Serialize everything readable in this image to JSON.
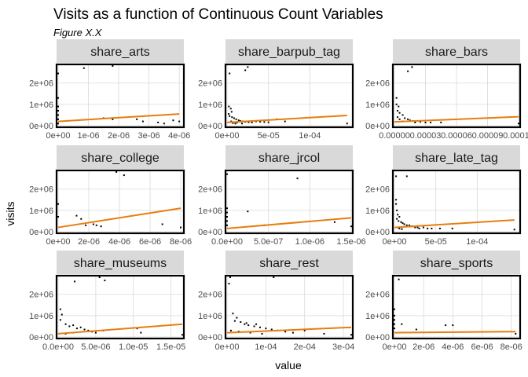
{
  "header": {
    "title": "Visits as a function of Continuous Count Variables",
    "subtitle": "Figure X.X"
  },
  "axes": {
    "xlabel": "value",
    "ylabel": "visits"
  },
  "chart_data": {
    "type": "scatter",
    "facet_layout": "3x3",
    "y_ticks": [
      "0e+00",
      "1e+06",
      "2e+06"
    ],
    "y_tick_values": [
      0,
      1000000,
      2000000
    ],
    "ylim": [
      0,
      2800000
    ],
    "grid": true,
    "fit_color": "#e87d0d",
    "point_color": "#000000",
    "panels": [
      {
        "name": "share_arts",
        "xlim": [
          0,
          4.1e-06
        ],
        "x_ticks": [
          "0e+00",
          "1e-06",
          "2e-06",
          "3e-06",
          "4e-06"
        ],
        "x_tick_values": [
          0,
          1e-06,
          2e-06,
          3e-06,
          4e-06
        ],
        "points": [
          [
            0,
            2450000
          ],
          [
            8.5e-07,
            2700000
          ],
          [
            1.8e-06,
            2800000
          ],
          [
            0,
            1300000
          ],
          [
            0,
            900000
          ],
          [
            0,
            700000
          ],
          [
            0,
            500000
          ],
          [
            0,
            300000
          ],
          [
            0,
            100000
          ],
          [
            1.5e-06,
            350000
          ],
          [
            1.8e-06,
            300000
          ],
          [
            2.6e-06,
            300000
          ],
          [
            2.8e-06,
            200000
          ],
          [
            3.3e-06,
            150000
          ],
          [
            3.5e-06,
            100000
          ],
          [
            4e-06,
            200000
          ],
          [
            3.8e-06,
            250000
          ]
        ],
        "fit": [
          [
            0,
            200000
          ],
          [
            4e-06,
            550000
          ]
        ]
      },
      {
        "name": "share_barpub_tag",
        "xlim": [
          0,
          0.00015
        ],
        "x_ticks": [
          "0e+00",
          "5e-05",
          "1e-04"
        ],
        "x_tick_values": [
          0,
          5e-05,
          0.0001
        ],
        "points": [
          [
            3e-06,
            2450000
          ],
          [
            2.2e-06,
            900000
          ],
          [
            4.5e-06,
            800000
          ],
          [
            5.5e-06,
            650000
          ],
          [
            2e-06,
            550000
          ],
          [
            3e-06,
            450000
          ],
          [
            6e-06,
            400000
          ],
          [
            8.5e-06,
            350000
          ],
          [
            1.1e-05,
            300000
          ],
          [
            1.4e-05,
            250000
          ],
          [
            1.6e-05,
            220000
          ],
          [
            1.9e-05,
            200000
          ],
          [
            2.2e-05,
            180000
          ],
          [
            2.6e-05,
            160000
          ],
          [
            3e-05,
            150000
          ],
          [
            3.5e-05,
            200000
          ],
          [
            4e-05,
            180000
          ],
          [
            4.5e-05,
            170000
          ],
          [
            5e-05,
            160000
          ],
          [
            6e-05,
            300000
          ],
          [
            7e-05,
            200000
          ],
          [
            2.2e-05,
            2600000
          ],
          [
            2.5e-05,
            2750000
          ],
          [
            1e-05,
            100000
          ],
          [
            0.000145,
            100000
          ],
          [
            5e-06,
            200000
          ],
          [
            7e-06,
            120000
          ],
          [
            1.2e-05,
            150000
          ],
          [
            1.8e-05,
            100000
          ]
        ],
        "fit": [
          [
            0,
            150000
          ],
          [
            0.000145,
            480000
          ]
        ]
      },
      {
        "name": "share_bars",
        "xlim": [
          0,
          0.00012
        ],
        "x_ticks": [
          "0.00000",
          "0.00003",
          "0.00006",
          "0.00009",
          "0.00012"
        ],
        "x_tick_values": [
          0,
          3e-05,
          6e-05,
          9e-05,
          0.00012
        ],
        "points": [
          [
            1.3e-05,
            2550000
          ],
          [
            1.7e-05,
            2750000
          ],
          [
            2e-06,
            1300000
          ],
          [
            2e-06,
            1000000
          ],
          [
            4e-06,
            900000
          ],
          [
            3e-06,
            700000
          ],
          [
            5e-06,
            600000
          ],
          [
            8e-06,
            500000
          ],
          [
            3e-06,
            400000
          ],
          [
            5e-06,
            300000
          ],
          [
            1e-05,
            350000
          ],
          [
            1.3e-05,
            300000
          ],
          [
            1.5e-05,
            250000
          ],
          [
            1.8e-05,
            220000
          ],
          [
            8e-06,
            200000
          ],
          [
            2e-05,
            150000
          ],
          [
            2.5e-05,
            180000
          ],
          [
            3e-05,
            150000
          ],
          [
            3.5e-05,
            150000
          ],
          [
            4.5e-05,
            150000
          ],
          [
            0.00012,
            100000
          ]
        ],
        "fit": [
          [
            0,
            180000
          ],
          [
            0.00012,
            420000
          ]
        ]
      },
      {
        "name": "share_college",
        "xlim": [
          0,
          8.1e-06
        ],
        "x_ticks": [
          "0e+00",
          "2e-06",
          "4e-06",
          "6e-06",
          "8e-06"
        ],
        "x_tick_values": [
          0,
          2e-06,
          4e-06,
          6e-06,
          8e-06
        ],
        "points": [
          [
            0,
            1300000
          ],
          [
            0,
            700000
          ],
          [
            1.2e-06,
            750000
          ],
          [
            1.5e-06,
            600000
          ],
          [
            1.8e-06,
            300000
          ],
          [
            2.3e-06,
            350000
          ],
          [
            2.5e-06,
            300000
          ],
          [
            2.8e-06,
            250000
          ],
          [
            3.8e-06,
            2800000
          ],
          [
            4.3e-06,
            2650000
          ],
          [
            6.8e-06,
            350000
          ],
          [
            8e-06,
            200000
          ]
        ],
        "fit": [
          [
            0,
            200000
          ],
          [
            8e-06,
            1100000
          ]
        ]
      },
      {
        "name": "share_jrcol",
        "xlim": [
          0,
          1.5e-06
        ],
        "x_ticks": [
          "0.0e+00",
          "5.0e-07",
          "1.0e-06",
          "1.5e-06"
        ],
        "x_tick_values": [
          0,
          5e-07,
          1e-06,
          1.5e-06
        ],
        "points": [
          [
            0,
            2700000
          ],
          [
            0,
            1100000
          ],
          [
            0,
            900000
          ],
          [
            0,
            700000
          ],
          [
            0,
            500000
          ],
          [
            0,
            300000
          ],
          [
            2.5e-07,
            950000
          ],
          [
            4.5e-07,
            300000
          ],
          [
            8.5e-07,
            2500000
          ],
          [
            1.3e-06,
            450000
          ],
          [
            1.5e-06,
            250000
          ]
        ],
        "fit": [
          [
            0,
            150000
          ],
          [
            1.5e-06,
            650000
          ]
        ]
      },
      {
        "name": "share_late_tag",
        "xlim": [
          0,
          0.00015
        ],
        "x_ticks": [
          "0e+00",
          "5e-05",
          "1e-04"
        ],
        "x_tick_values": [
          0,
          5e-05,
          0.0001
        ],
        "points": [
          [
            2e-06,
            2600000
          ],
          [
            1.5e-05,
            2600000
          ],
          [
            2e-06,
            1500000
          ],
          [
            2e-06,
            1300000
          ],
          [
            3e-06,
            1000000
          ],
          [
            4e-06,
            800000
          ],
          [
            6e-06,
            700000
          ],
          [
            3e-06,
            600000
          ],
          [
            5e-06,
            500000
          ],
          [
            8e-06,
            450000
          ],
          [
            1e-05,
            400000
          ],
          [
            1.2e-05,
            350000
          ],
          [
            1.5e-05,
            300000
          ],
          [
            1.8e-05,
            300000
          ],
          [
            2e-05,
            250000
          ],
          [
            2.2e-05,
            250000
          ],
          [
            2.5e-05,
            200000
          ],
          [
            2.8e-05,
            200000
          ],
          [
            3e-05,
            150000
          ],
          [
            3.5e-05,
            200000
          ],
          [
            4e-05,
            150000
          ],
          [
            4.5e-05,
            150000
          ],
          [
            5.5e-05,
            150000
          ],
          [
            7e-05,
            150000
          ],
          [
            4e-06,
            200000
          ],
          [
            6e-06,
            150000
          ],
          [
            9e-06,
            120000
          ],
          [
            0.000145,
            100000
          ]
        ],
        "fit": [
          [
            0,
            200000
          ],
          [
            0.000145,
            550000
          ]
        ]
      },
      {
        "name": "share_museums",
        "xlim": [
          0,
          1.65e-05
        ],
        "x_ticks": [
          "0.0e+00",
          "5.0e-06",
          "1.0e-05",
          "1.5e-05"
        ],
        "x_tick_values": [
          0,
          5e-06,
          1e-05,
          1.5e-05
        ],
        "points": [
          [
            3e-07,
            1300000
          ],
          [
            5e-07,
            1050000
          ],
          [
            3e-07,
            800000
          ],
          [
            1e-06,
            600000
          ],
          [
            1.5e-06,
            500000
          ],
          [
            2e-06,
            550000
          ],
          [
            2.5e-06,
            400000
          ],
          [
            3e-06,
            450000
          ],
          [
            3.5e-06,
            350000
          ],
          [
            4e-06,
            300000
          ],
          [
            4.5e-06,
            250000
          ],
          [
            5e-06,
            200000
          ],
          [
            2.2e-06,
            2600000
          ],
          [
            5.5e-06,
            2800000
          ],
          [
            6.2e-06,
            2650000
          ],
          [
            6e-06,
            300000
          ],
          [
            1.05e-05,
            400000
          ],
          [
            1.1e-05,
            200000
          ],
          [
            1.65e-05,
            100000
          ],
          [
            1e-06,
            150000
          ],
          [
            2e-06,
            200000
          ]
        ],
        "fit": [
          [
            0,
            150000
          ],
          [
            1.65e-05,
            600000
          ]
        ]
      },
      {
        "name": "share_rest",
        "xlim": [
          0,
          0.00032
        ],
        "x_ticks": [
          "0e+00",
          "1e-04",
          "2e-04",
          "3e-04"
        ],
        "x_tick_values": [
          0,
          0.0001,
          0.0002,
          0.0003
        ],
        "points": [
          [
            5e-06,
            2500000
          ],
          [
            8e-06,
            2800000
          ],
          [
            0.00012,
            2800000
          ],
          [
            1.5e-05,
            1100000
          ],
          [
            2.5e-05,
            900000
          ],
          [
            2e-05,
            750000
          ],
          [
            3.5e-05,
            700000
          ],
          [
            4.5e-05,
            600000
          ],
          [
            5.5e-05,
            550000
          ],
          [
            7e-05,
            500000
          ],
          [
            8.5e-05,
            450000
          ],
          [
            0.0001,
            400000
          ],
          [
            0.000115,
            350000
          ],
          [
            0.00013,
            300000
          ],
          [
            0.00015,
            250000
          ],
          [
            0.00017,
            200000
          ],
          [
            0.0002,
            300000
          ],
          [
            0.00025,
            150000
          ],
          [
            1e-05,
            300000
          ],
          [
            3e-05,
            250000
          ],
          [
            6e-05,
            200000
          ],
          [
            9e-05,
            150000
          ],
          [
            0.00032,
            100000
          ],
          [
            5e-05,
            650000
          ],
          [
            7.5e-05,
            600000
          ]
        ],
        "fit": [
          [
            0,
            200000
          ],
          [
            0.00032,
            450000
          ]
        ]
      },
      {
        "name": "share_sports",
        "xlim": [
          0,
          8.5e-06
        ],
        "x_ticks": [
          "0e+00",
          "2e-06",
          "4e-06",
          "6e-06",
          "8e-06"
        ],
        "x_tick_values": [
          0,
          2e-06,
          4e-06,
          6e-06,
          8e-06
        ],
        "points": [
          [
            3e-07,
            2700000
          ],
          [
            0,
            1300000
          ],
          [
            0,
            1000000
          ],
          [
            0,
            800000
          ],
          [
            0,
            600000
          ],
          [
            0,
            400000
          ],
          [
            5e-07,
            600000
          ],
          [
            1.5e-06,
            350000
          ],
          [
            3.5e-06,
            550000
          ],
          [
            4e-06,
            550000
          ],
          [
            8.3e-06,
            150000
          ]
        ],
        "fit": [
          [
            0,
            200000
          ],
          [
            8.3e-06,
            250000
          ]
        ]
      }
    ]
  }
}
